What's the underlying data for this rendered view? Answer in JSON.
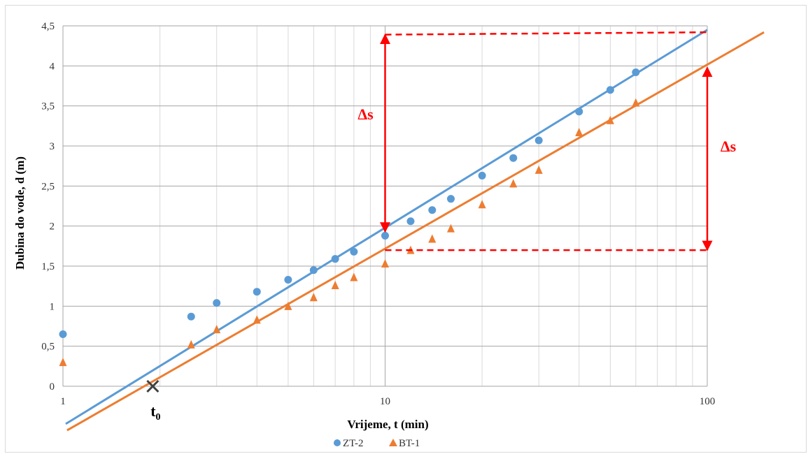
{
  "chart_data": {
    "type": "scatter",
    "title": "",
    "xlabel": "Vrijeme, t (min)",
    "ylabel": "Dubina do vode, d (m)",
    "xscale": "log",
    "xlim": [
      1,
      100
    ],
    "ylim": [
      0,
      4.5
    ],
    "xticks": [
      "1",
      "10",
      "100"
    ],
    "yticks": [
      "0",
      "0,5",
      "1",
      "1,5",
      "2",
      "2,5",
      "3",
      "3,5",
      "4",
      "4,5"
    ],
    "grid": true,
    "legend_position": "bottom",
    "series": [
      {
        "name": "ZT-2",
        "marker": "circle",
        "color": "#5b9bd5",
        "x": [
          1,
          2.5,
          3,
          4,
          5,
          6,
          7,
          8,
          10,
          12,
          14,
          16,
          20,
          25,
          30,
          40,
          50,
          60
        ],
        "y": [
          0.65,
          0.87,
          1.04,
          1.18,
          1.33,
          1.45,
          1.59,
          1.68,
          1.88,
          2.06,
          2.2,
          2.34,
          2.63,
          2.85,
          3.07,
          3.43,
          3.7,
          3.92
        ]
      },
      {
        "name": "BT-1",
        "marker": "triangle",
        "color": "#ed7d31",
        "x": [
          1,
          2.5,
          3,
          4,
          5,
          6,
          7,
          8,
          10,
          12,
          14,
          16,
          20,
          25,
          30,
          40,
          50,
          60
        ],
        "y": [
          0.3,
          0.52,
          0.71,
          0.83,
          1.0,
          1.11,
          1.26,
          1.36,
          1.53,
          1.7,
          1.84,
          1.97,
          2.27,
          2.53,
          2.7,
          3.17,
          3.32,
          3.54
        ]
      }
    ],
    "fit_lines": [
      {
        "color": "#5b9bd5",
        "points": [
          [
            1.02,
            -0.47
          ],
          [
            100,
            4.45
          ]
        ]
      },
      {
        "color": "#ed7d31",
        "points": [
          [
            1.03,
            -0.55
          ],
          [
            150,
            4.42
          ]
        ]
      }
    ],
    "annotations": {
      "t0_label": "t",
      "t0_subscript": "0",
      "t0_point": [
        1.9,
        0.0
      ],
      "delta_s_label": "Δs",
      "annotation_color": "#ff0000",
      "dashed_upper": [
        [
          10,
          4.39
        ],
        [
          100,
          4.42
        ]
      ],
      "dashed_lower": [
        [
          10,
          1.7
        ],
        [
          100,
          1.7
        ]
      ],
      "arrow_left": [
        [
          10,
          4.39
        ],
        [
          10,
          1.93
        ]
      ],
      "arrow_right": [
        [
          100,
          3.98
        ],
        [
          100,
          1.7
        ]
      ]
    }
  }
}
